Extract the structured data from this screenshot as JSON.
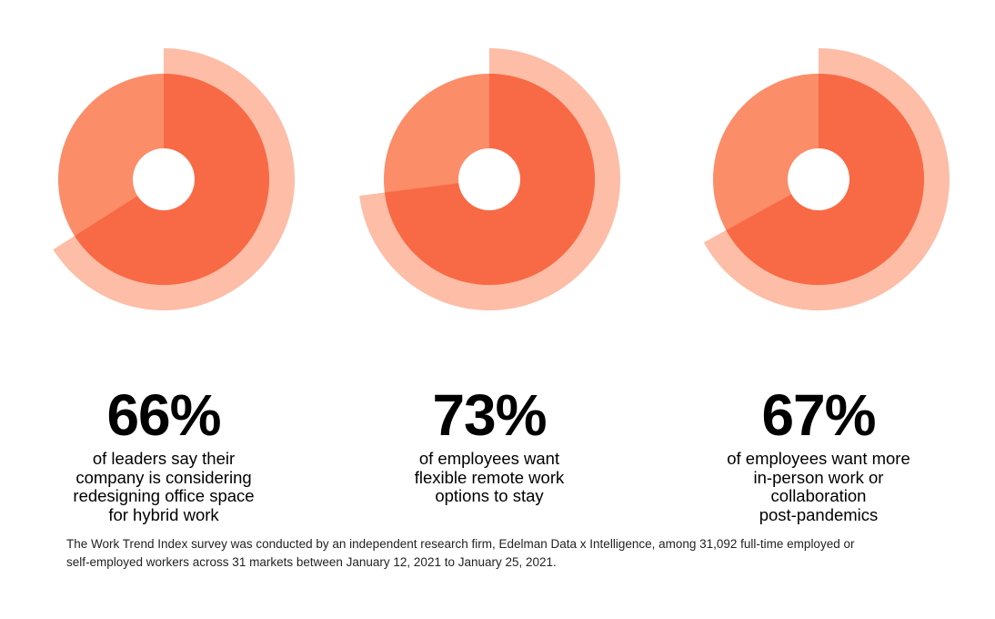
{
  "chart_data": [
    {
      "type": "pie",
      "value": 66,
      "label": "66%",
      "description_lines": [
        "of leaders say their",
        "company is considering",
        "redesigning office space",
        "for hybrid work"
      ]
    },
    {
      "type": "pie",
      "value": 73,
      "label": "73%",
      "description_lines": [
        "of employees want",
        "flexible remote work",
        "options to stay"
      ]
    },
    {
      "type": "pie",
      "value": 67,
      "label": "67%",
      "description_lines": [
        "of employees want more",
        "in-person work or",
        "collaboration",
        "post-pandemics"
      ]
    }
  ],
  "colors": {
    "highlight": "#f86a45",
    "base": "#fb8d68",
    "outer_ring": "#fdbda7",
    "hole": "#ffffff"
  },
  "footnote_lines": [
    "The Work Trend Index survey was conducted by an independent research firm, Edelman Data x Intelligence, among 31,092 full-time employed or",
    "self-employed workers across 31 markets between January 12, 2021 to January 25, 2021."
  ]
}
